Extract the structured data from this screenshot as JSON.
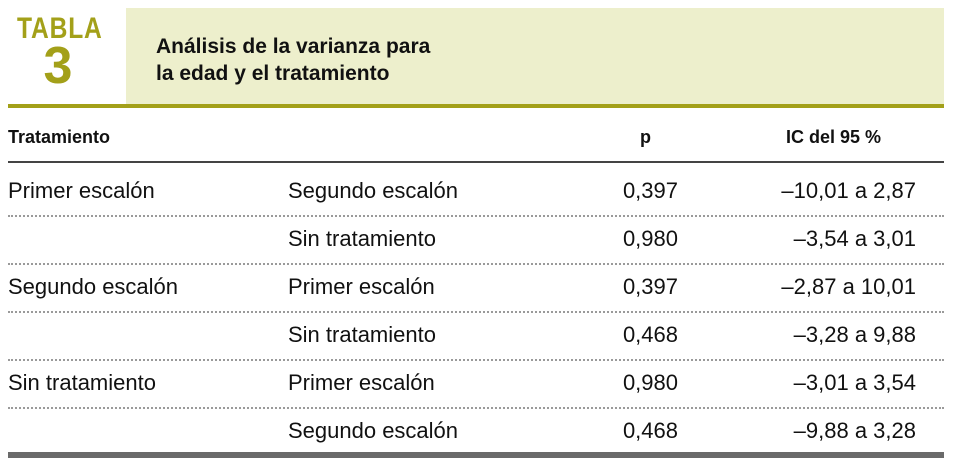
{
  "table_label": "TABLA",
  "table_number": "3",
  "title_line1": "Análisis de la varianza para",
  "title_line2": "la edad y el tratamiento",
  "columns": {
    "treatment": "Tratamiento",
    "p": "p",
    "ci": "IC del 95 %"
  },
  "rows": [
    {
      "group": "Primer escalón",
      "comparison": "Segundo escalón",
      "p": "0,397",
      "ci": "–10,01 a 2,87"
    },
    {
      "group": "",
      "comparison": "Sin tratamiento",
      "p": "0,980",
      "ci": "–3,54 a 3,01"
    },
    {
      "group": "Segundo escalón",
      "comparison": "Primer escalón",
      "p": "0,397",
      "ci": "–2,87 a 10,01"
    },
    {
      "group": "",
      "comparison": "Sin tratamiento",
      "p": "0,468",
      "ci": "–3,28 a 9,88"
    },
    {
      "group": "Sin tratamiento",
      "comparison": "Primer escalón",
      "p": "0,980",
      "ci": "–3,01 a 3,54"
    },
    {
      "group": "",
      "comparison": "Segundo escalón",
      "p": "0,468",
      "ci": "–9,88 a 3,28"
    }
  ],
  "colors": {
    "accent": "#a3a019",
    "title_background": "#edefcc"
  }
}
